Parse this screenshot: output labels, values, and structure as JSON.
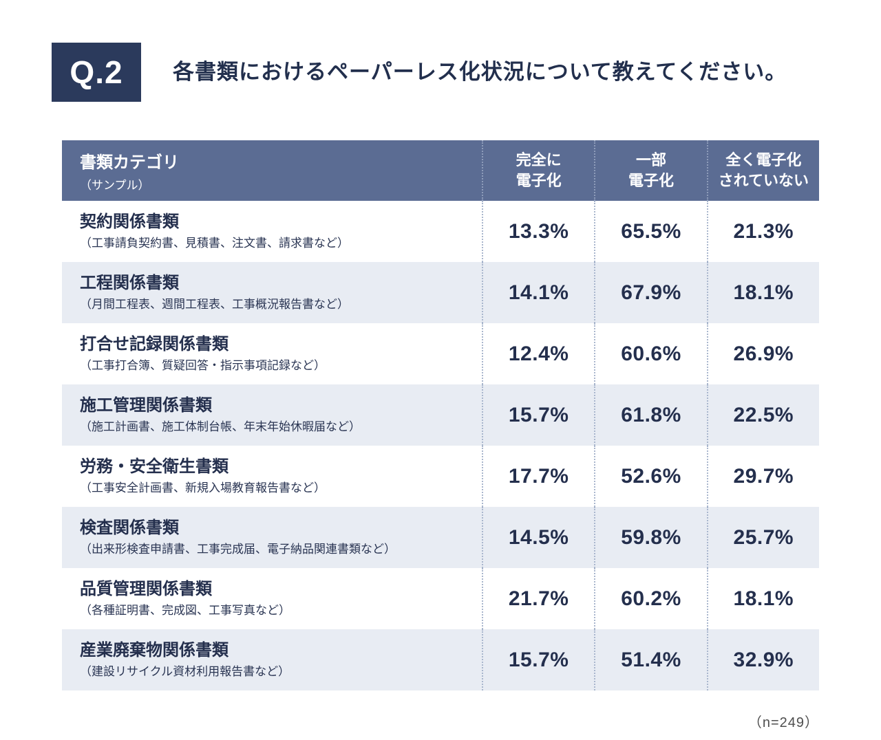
{
  "colors": {
    "badge_bg": "#2b3a5c",
    "header_bg": "#5b6c93",
    "row_alt_bg": "#e8ecf3",
    "text_dark": "#242f4d",
    "dotted_line": "#a9b6cd"
  },
  "question": {
    "badge": "Q.2",
    "title": "各書類におけるペーパーレス化状況について教えてください。"
  },
  "table": {
    "header": {
      "category_title": "書類カテゴリ",
      "category_sub": "（サンプル）",
      "columns": [
        {
          "line1": "完全に",
          "line2": "電子化"
        },
        {
          "line1": "一部",
          "line2": "電子化"
        },
        {
          "line1": "全く電子化",
          "line2": "されていない"
        }
      ]
    },
    "rows": [
      {
        "name": "契約関係書類",
        "sub": "（工事請負契約書、見積書、注文書、請求書など）",
        "full": "13.3%",
        "partial": "65.5%",
        "none": "21.3%"
      },
      {
        "name": "工程関係書類",
        "sub": "（月間工程表、週間工程表、工事概況報告書など）",
        "full": "14.1%",
        "partial": "67.9%",
        "none": "18.1%"
      },
      {
        "name": "打合せ記録関係書類",
        "sub": "（工事打合簿、質疑回答・指示事項記録など）",
        "full": "12.4%",
        "partial": "60.6%",
        "none": "26.9%"
      },
      {
        "name": "施工管理関係書類",
        "sub": "（施工計画書、施工体制台帳、年末年始休暇届など）",
        "full": "15.7%",
        "partial": "61.8%",
        "none": "22.5%"
      },
      {
        "name": "労務・安全衛生書類",
        "sub": "（工事安全計画書、新規入場教育報告書など）",
        "full": "17.7%",
        "partial": "52.6%",
        "none": "29.7%"
      },
      {
        "name": "検査関係書類",
        "sub": "（出来形検査申請書、工事完成届、電子納品関連書類など）",
        "full": "14.5%",
        "partial": "59.8%",
        "none": "25.7%"
      },
      {
        "name": "品質管理関係書類",
        "sub": "（各種証明書、完成図、工事写真など）",
        "full": "21.7%",
        "partial": "60.2%",
        "none": "18.1%"
      },
      {
        "name": "産業廃棄物関係書類",
        "sub": "（建設リサイクル資材利用報告書など）",
        "full": "15.7%",
        "partial": "51.4%",
        "none": "32.9%"
      }
    ]
  },
  "footer": {
    "note": "（n=249）"
  },
  "chart_data": {
    "type": "table",
    "title": "各書類におけるペーパーレス化状況について教えてください。",
    "columns": [
      "完全に電子化",
      "一部電子化",
      "全く電子化されていない"
    ],
    "categories": [
      "契約関係書類",
      "工程関係書類",
      "打合せ記録関係書類",
      "施工管理関係書類",
      "労務・安全衛生書類",
      "検査関係書類",
      "品質管理関係書類",
      "産業廃棄物関係書類"
    ],
    "category_examples": [
      "工事請負契約書、見積書、注文書、請求書など",
      "月間工程表、週間工程表、工事概況報告書など",
      "工事打合簿、質疑回答・指示事項記録など",
      "施工計画書、施工体制台帳、年末年始休暇届など",
      "工事安全計画書、新規入場教育報告書など",
      "出来形検査申請書、工事完成届、電子納品関連書類など",
      "各種証明書、完成図、工事写真など",
      "建設リサイクル資材利用報告書など"
    ],
    "series": [
      {
        "name": "完全に電子化",
        "values": [
          13.3,
          14.1,
          12.4,
          15.7,
          17.7,
          14.5,
          21.7,
          15.7
        ]
      },
      {
        "name": "一部電子化",
        "values": [
          65.5,
          67.9,
          60.6,
          61.8,
          52.6,
          59.8,
          60.2,
          51.4
        ]
      },
      {
        "name": "全く電子化されていない",
        "values": [
          21.3,
          18.1,
          26.9,
          22.5,
          29.7,
          25.7,
          18.1,
          32.9
        ]
      }
    ],
    "unit": "%",
    "sample_size": 249
  }
}
